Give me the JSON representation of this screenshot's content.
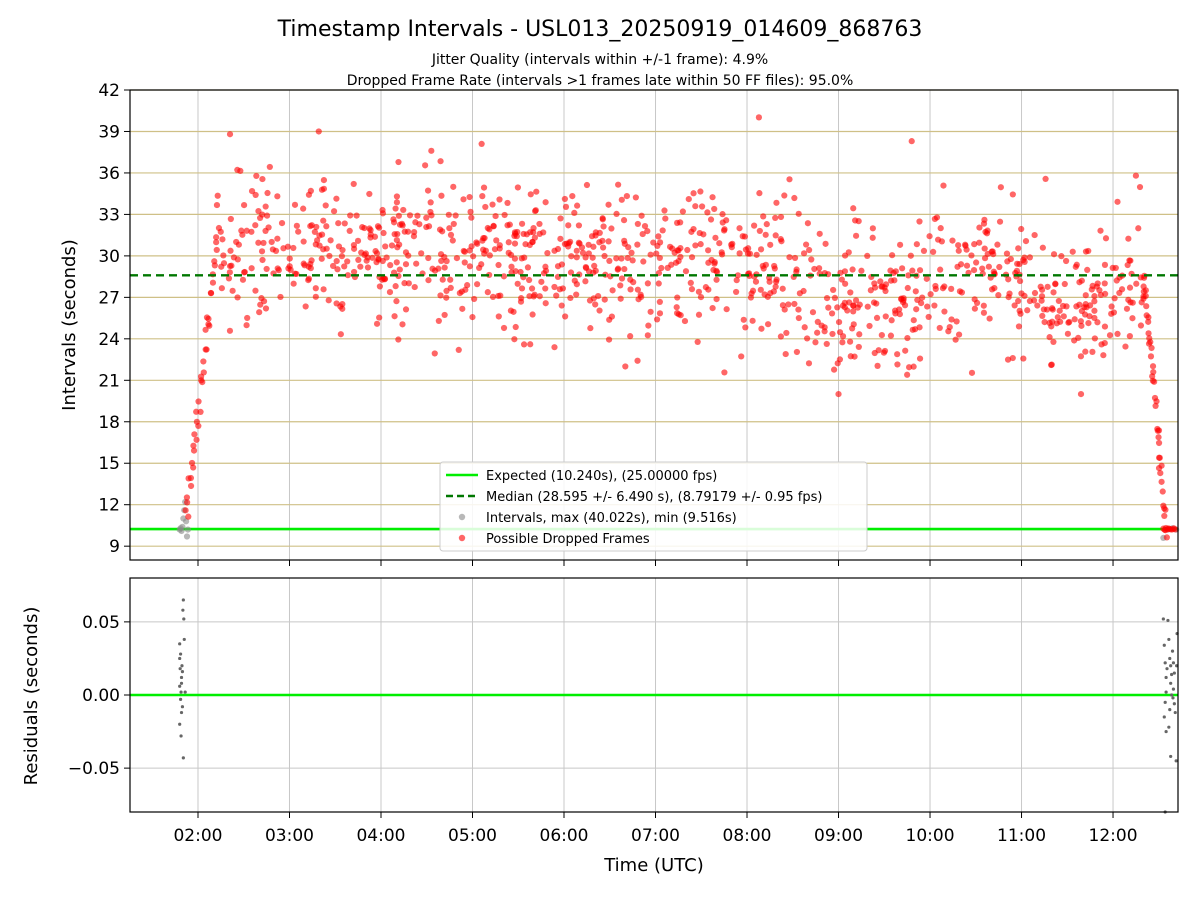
{
  "chart_data": {
    "title": "Timestamp Intervals - USL013_20250919_014609_868763",
    "subtitle_1": "Jitter Quality (intervals within +/-1 frame): 4.9%",
    "subtitle_2": "Dropped Frame Rate (intervals >1 frames late within 50 FF files): 95.0%",
    "x_axis": {
      "label": "Time (UTC)",
      "range_hours": [
        1.257,
        12.71
      ],
      "tick_values_hours": [
        2,
        3,
        4,
        5,
        6,
        7,
        8,
        9,
        10,
        11,
        12
      ],
      "tick_labels": [
        "02:00",
        "03:00",
        "04:00",
        "05:00",
        "06:00",
        "07:00",
        "08:00",
        "09:00",
        "10:00",
        "11:00",
        "12:00"
      ]
    },
    "top_panel": {
      "type": "scatter",
      "ylabel": "Intervals (seconds)",
      "ylim": [
        8.0,
        42.0
      ],
      "y_ticks": [
        9,
        12,
        15,
        18,
        21,
        24,
        27,
        30,
        33,
        36,
        39,
        42
      ],
      "y_tick_labels": [
        "9",
        "12",
        "15",
        "18",
        "21",
        "24",
        "27",
        "30",
        "33",
        "36",
        "39",
        "42"
      ],
      "expected_interval": 10.24,
      "median_interval": 28.595,
      "max_interval": 40.022,
      "min_interval": 9.516,
      "colors": {
        "expected_line": "#00ee00",
        "median_line": "#007700",
        "intervals": "#888888",
        "dropped": "#ff0000",
        "hgrid": "#cfc087",
        "vgrid": "#c8c8c8"
      },
      "legend": [
        {
          "label": "Expected (10.240s), (25.00000 fps)",
          "marker": "line",
          "color": "#00ee00"
        },
        {
          "label": "Median (28.595 +/- 6.490 s), (8.79179 +/- 0.95 fps)",
          "marker": "dashed",
          "color": "#007700"
        },
        {
          "label": "Intervals, max (40.022s), min (9.516s)",
          "marker": "dot",
          "color": "#888888"
        },
        {
          "label": "Possible Dropped Frames",
          "marker": "dot",
          "color": "#ff0000"
        }
      ],
      "series": {
        "intervals_gray": {
          "name": "Intervals",
          "points": [
            [
              1.8,
              10.2
            ],
            [
              1.81,
              10.3
            ],
            [
              1.82,
              10.1
            ],
            [
              1.83,
              10.4
            ],
            [
              1.84,
              11.0
            ],
            [
              1.85,
              11.6
            ],
            [
              1.86,
              12.2
            ],
            [
              1.87,
              10.8
            ],
            [
              1.88,
              9.7
            ],
            [
              1.89,
              10.2
            ],
            [
              12.55,
              9.6
            ],
            [
              12.6,
              10.2
            ],
            [
              12.65,
              10.3
            ],
            [
              12.69,
              10.2
            ]
          ]
        },
        "dropped_ramps": {
          "name": "Possible Dropped Frames (ramps)",
          "rise": {
            "t_start": 1.87,
            "t_end": 2.22,
            "v_start": 10.6,
            "v_end": 31.5,
            "count": 40,
            "jitter": 1.2
          },
          "fall": {
            "t_start": 12.34,
            "t_end": 12.58,
            "v_start": 28.5,
            "v_end": 10.3,
            "count": 40,
            "jitter": 0.8
          },
          "tail": {
            "t_start": 12.55,
            "t_end": 12.68,
            "value": 10.25,
            "count": 10
          }
        },
        "dropped_main": {
          "name": "Possible Dropped Frames",
          "description": "dense cloud of intervals between 02:15 and 12:20",
          "t_start": 2.2,
          "t_end": 12.35,
          "count": 1050,
          "seed": 7,
          "spread_sigma": 2.6,
          "trend": [
            [
              2.2,
              30.0
            ],
            [
              3.0,
              30.2
            ],
            [
              4.0,
              29.6
            ],
            [
              5.0,
              30.6
            ],
            [
              6.0,
              29.8
            ],
            [
              7.0,
              29.8
            ],
            [
              8.0,
              30.0
            ],
            [
              8.5,
              28.8
            ],
            [
              9.0,
              26.4
            ],
            [
              9.5,
              26.6
            ],
            [
              10.0,
              28.0
            ],
            [
              10.5,
              29.2
            ],
            [
              11.0,
              28.4
            ],
            [
              11.5,
              26.8
            ],
            [
              12.0,
              26.8
            ],
            [
              12.3,
              29.0
            ]
          ],
          "notable_points": [
            [
              2.35,
              38.8
            ],
            [
              3.32,
              39.0
            ],
            [
              4.55,
              37.6
            ],
            [
              5.1,
              38.1
            ],
            [
              8.13,
              40.02
            ],
            [
              9.8,
              38.3
            ],
            [
              6.67,
              22.0
            ],
            [
              9.0,
              20.0
            ],
            [
              9.75,
              21.4
            ],
            [
              11.65,
              20.0
            ],
            [
              4.85,
              23.2
            ],
            [
              12.25,
              35.8
            ]
          ]
        }
      }
    },
    "bottom_panel": {
      "type": "scatter",
      "ylabel": "Residuals (seconds)",
      "ylim": [
        -0.08,
        0.08
      ],
      "y_ticks": [
        0.05,
        0.0,
        -0.05
      ],
      "y_tick_labels": [
        "0.05",
        "0.00",
        "−0.05"
      ],
      "zero_line_color": "#00ee00",
      "point_color": "#666666",
      "residuals": [
        [
          1.8,
          0.035
        ],
        [
          1.81,
          0.028
        ],
        [
          1.805,
          0.018
        ],
        [
          1.82,
          0.012
        ],
        [
          1.815,
          0.002
        ],
        [
          1.81,
          -0.003
        ],
        [
          1.83,
          -0.008
        ],
        [
          1.82,
          -0.012
        ],
        [
          1.8,
          -0.02
        ],
        [
          1.825,
          0.02
        ],
        [
          1.835,
          0.058
        ],
        [
          1.84,
          0.065
        ],
        [
          1.845,
          0.052
        ],
        [
          1.85,
          0.038
        ],
        [
          1.82,
          0.008
        ],
        [
          1.8,
          0.025
        ],
        [
          1.815,
          -0.028
        ],
        [
          1.84,
          -0.043
        ],
        [
          1.86,
          0.002
        ],
        [
          1.83,
          0.016
        ],
        [
          1.8,
          0.006
        ],
        [
          12.55,
          0.052
        ],
        [
          12.56,
          0.034
        ],
        [
          12.57,
          0.022
        ],
        [
          12.58,
          0.012
        ],
        [
          12.58,
          0.002
        ],
        [
          12.57,
          -0.005
        ],
        [
          12.56,
          -0.015
        ],
        [
          12.58,
          -0.025
        ],
        [
          12.6,
          0.051
        ],
        [
          12.61,
          0.038
        ],
        [
          12.62,
          0.025
        ],
        [
          12.63,
          0.02
        ],
        [
          12.63,
          0.008
        ],
        [
          12.64,
          0.0
        ],
        [
          12.62,
          -0.01
        ],
        [
          12.61,
          -0.022
        ],
        [
          12.63,
          -0.042
        ],
        [
          12.65,
          0.03
        ],
        [
          12.66,
          0.022
        ],
        [
          12.67,
          0.015
        ],
        [
          12.66,
          0.004
        ],
        [
          12.67,
          -0.006
        ],
        [
          12.68,
          -0.012
        ],
        [
          12.69,
          -0.045
        ],
        [
          12.7,
          0.042
        ],
        [
          12.695,
          0.02
        ],
        [
          12.57,
          -0.08
        ],
        [
          12.59,
          0.018
        ],
        [
          12.64,
          0.014
        ],
        [
          12.655,
          -0.002
        ]
      ]
    }
  }
}
